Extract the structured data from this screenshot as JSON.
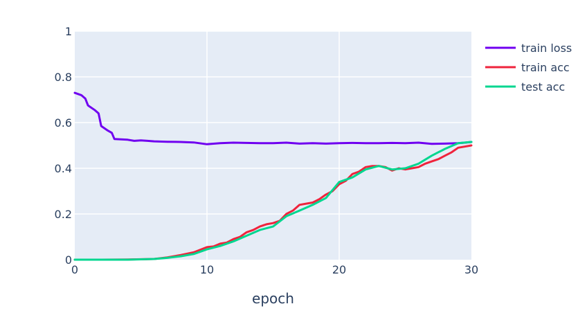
{
  "chart_data": {
    "type": "line",
    "xlabel": "epoch",
    "ylabel": "",
    "xlim": [
      0,
      30
    ],
    "ylim": [
      0,
      1
    ],
    "x_ticks": [
      0,
      10,
      20,
      30
    ],
    "y_ticks": [
      0,
      0.2,
      0.4,
      0.6,
      0.8,
      1
    ],
    "x_tick_labels": [
      "0",
      "10",
      "20",
      "30"
    ],
    "y_tick_labels": [
      "0",
      "0.2",
      "0.4",
      "0.6",
      "0.8",
      "1"
    ],
    "grid": true,
    "legend_position": "top-right",
    "plot_background": "#e5ecf6",
    "series": [
      {
        "name": "train loss",
        "color": "#7000f0",
        "points": [
          [
            0,
            0.73
          ],
          [
            0.5,
            0.72
          ],
          [
            0.8,
            0.705
          ],
          [
            1.0,
            0.675
          ],
          [
            1.5,
            0.655
          ],
          [
            1.8,
            0.64
          ],
          [
            2.0,
            0.585
          ],
          [
            2.5,
            0.565
          ],
          [
            2.8,
            0.555
          ],
          [
            3.0,
            0.528
          ],
          [
            4.0,
            0.525
          ],
          [
            4.5,
            0.52
          ],
          [
            5.0,
            0.522
          ],
          [
            5.5,
            0.52
          ],
          [
            6.0,
            0.518
          ],
          [
            7.0,
            0.516
          ],
          [
            8.0,
            0.515
          ],
          [
            9.0,
            0.513
          ],
          [
            10.0,
            0.505
          ],
          [
            11.0,
            0.51
          ],
          [
            12.0,
            0.512
          ],
          [
            13.0,
            0.511
          ],
          [
            14.0,
            0.51
          ],
          [
            15.0,
            0.51
          ],
          [
            16.0,
            0.512
          ],
          [
            17.0,
            0.508
          ],
          [
            18.0,
            0.51
          ],
          [
            19.0,
            0.508
          ],
          [
            20.0,
            0.51
          ],
          [
            21.0,
            0.511
          ],
          [
            22.0,
            0.51
          ],
          [
            23.0,
            0.51
          ],
          [
            24.0,
            0.511
          ],
          [
            25.0,
            0.51
          ],
          [
            26.0,
            0.512
          ],
          [
            27.0,
            0.507
          ],
          [
            28.0,
            0.508
          ],
          [
            29.0,
            0.51
          ],
          [
            29.5,
            0.512
          ],
          [
            30.0,
            0.515
          ]
        ]
      },
      {
        "name": "train acc",
        "color": "#ef233c",
        "points": [
          [
            0,
            0.0
          ],
          [
            2,
            0.0
          ],
          [
            4,
            0.001
          ],
          [
            6,
            0.003
          ],
          [
            7,
            0.01
          ],
          [
            8,
            0.02
          ],
          [
            9,
            0.032
          ],
          [
            10,
            0.055
          ],
          [
            10.5,
            0.058
          ],
          [
            11,
            0.07
          ],
          [
            11.5,
            0.075
          ],
          [
            12,
            0.09
          ],
          [
            12.5,
            0.1
          ],
          [
            13,
            0.12
          ],
          [
            13.5,
            0.13
          ],
          [
            14,
            0.145
          ],
          [
            14.5,
            0.155
          ],
          [
            15,
            0.16
          ],
          [
            15.5,
            0.17
          ],
          [
            16,
            0.2
          ],
          [
            16.5,
            0.215
          ],
          [
            17,
            0.24
          ],
          [
            17.5,
            0.245
          ],
          [
            18,
            0.25
          ],
          [
            18.5,
            0.265
          ],
          [
            19,
            0.285
          ],
          [
            19.5,
            0.3
          ],
          [
            20,
            0.33
          ],
          [
            20.5,
            0.345
          ],
          [
            21,
            0.375
          ],
          [
            21.5,
            0.385
          ],
          [
            22,
            0.405
          ],
          [
            22.5,
            0.41
          ],
          [
            23,
            0.41
          ],
          [
            23.5,
            0.405
          ],
          [
            24,
            0.39
          ],
          [
            24.5,
            0.4
          ],
          [
            25,
            0.395
          ],
          [
            25.5,
            0.4
          ],
          [
            26,
            0.405
          ],
          [
            26.5,
            0.42
          ],
          [
            27,
            0.43
          ],
          [
            27.5,
            0.44
          ],
          [
            28,
            0.455
          ],
          [
            28.5,
            0.47
          ],
          [
            29,
            0.49
          ],
          [
            29.5,
            0.495
          ],
          [
            30,
            0.5
          ]
        ]
      },
      {
        "name": "test acc",
        "color": "#00d68f",
        "points": [
          [
            0,
            0.0
          ],
          [
            2,
            0.0
          ],
          [
            4,
            0.0
          ],
          [
            6,
            0.003
          ],
          [
            7,
            0.008
          ],
          [
            8,
            0.015
          ],
          [
            9,
            0.025
          ],
          [
            10,
            0.045
          ],
          [
            11,
            0.06
          ],
          [
            12,
            0.08
          ],
          [
            13,
            0.105
          ],
          [
            14,
            0.13
          ],
          [
            15,
            0.145
          ],
          [
            16,
            0.19
          ],
          [
            17,
            0.215
          ],
          [
            18,
            0.24
          ],
          [
            19,
            0.27
          ],
          [
            20,
            0.34
          ],
          [
            21,
            0.36
          ],
          [
            22,
            0.395
          ],
          [
            23,
            0.41
          ],
          [
            24,
            0.395
          ],
          [
            25,
            0.4
          ],
          [
            26,
            0.42
          ],
          [
            27,
            0.455
          ],
          [
            28,
            0.485
          ],
          [
            29,
            0.51
          ],
          [
            30,
            0.515
          ]
        ]
      }
    ]
  }
}
